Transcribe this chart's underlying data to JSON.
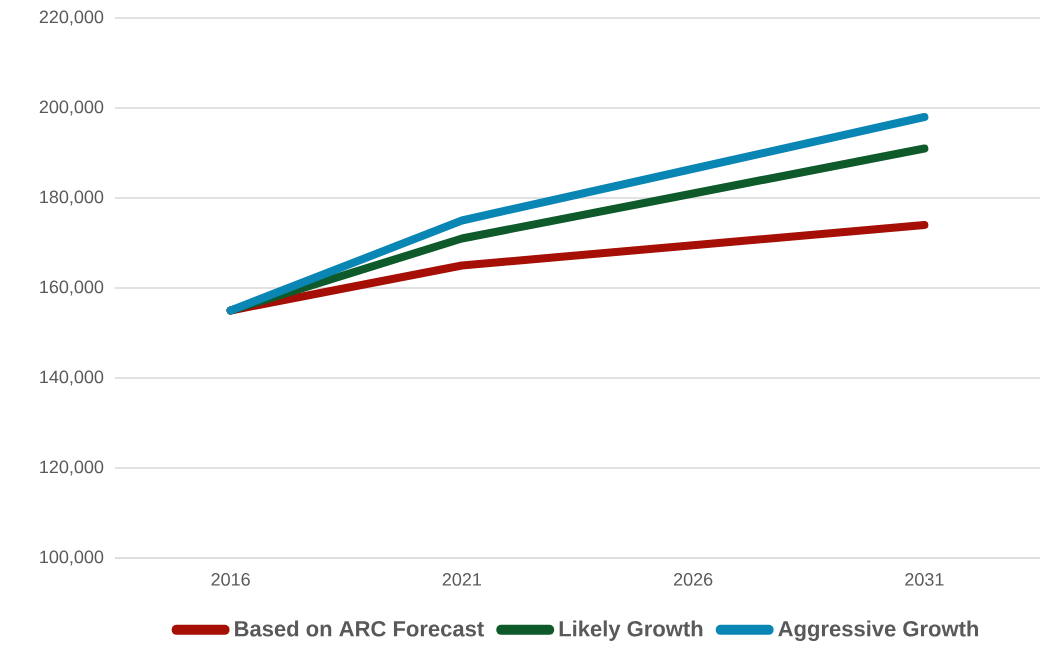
{
  "chart_data": {
    "type": "line",
    "categories": [
      "2016",
      "2021",
      "2026",
      "2031"
    ],
    "series": [
      {
        "name": "Based on ARC Forecast",
        "color": "#a50f05",
        "values": [
          155000,
          165000,
          169500,
          174000
        ]
      },
      {
        "name": "Likely Growth",
        "color": "#0e5a2b",
        "values": [
          155000,
          171000,
          181000,
          191000
        ]
      },
      {
        "name": "Aggressive Growth",
        "color": "#0a86b4",
        "values": [
          155000,
          175000,
          186500,
          198000
        ]
      }
    ],
    "ylim": [
      100000,
      220000
    ],
    "yticks": [
      {
        "value": 100000,
        "label": "100,000"
      },
      {
        "value": 120000,
        "label": "120,000"
      },
      {
        "value": 140000,
        "label": "140,000"
      },
      {
        "value": 160000,
        "label": "160,000"
      },
      {
        "value": 180000,
        "label": "180,000"
      },
      {
        "value": 200000,
        "label": "200,000"
      },
      {
        "value": 220000,
        "label": "220,000"
      }
    ],
    "grid": "y",
    "legend": "bottom",
    "marker": "none",
    "line_style": "solid"
  }
}
